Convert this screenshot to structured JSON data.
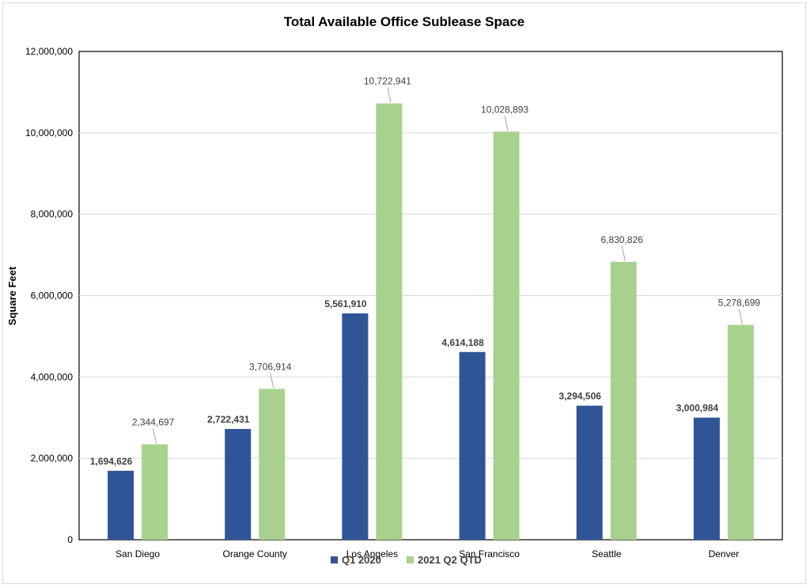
{
  "chart_data": {
    "type": "bar",
    "title": "Total Available Office  Sublease Space",
    "xlabel": "",
    "ylabel": "Square Feet",
    "ylim": [
      0,
      12000000
    ],
    "yticks": [
      0,
      2000000,
      4000000,
      6000000,
      8000000,
      10000000,
      12000000
    ],
    "ytick_labels": [
      "0",
      "2,000,000",
      "4,000,000",
      "6,000,000",
      "8,000,000",
      "10,000,000",
      "12,000,000"
    ],
    "categories": [
      "San Diego",
      "Orange County",
      "Los Angeles",
      "San Francisco",
      "Seattle",
      "Denver"
    ],
    "series": [
      {
        "name": "Q1 2020",
        "color": "#2f5597",
        "values": [
          1694626,
          2722431,
          5561910,
          4614188,
          3294506,
          3000984
        ],
        "labels": [
          "1,694,626",
          "2,722,431",
          "5,561,910",
          "4,614,188",
          "3,294,506",
          "3,000,984"
        ]
      },
      {
        "name": "2021 Q2 QTD",
        "color": "#a9d18e",
        "values": [
          2344697,
          3706914,
          10722941,
          10028893,
          6830826,
          5278699
        ],
        "labels": [
          "2,344,697",
          "3,706,914",
          "10,722,941",
          "10,028,893",
          "6,830,826",
          "5,278,699"
        ]
      }
    ],
    "grid": true,
    "legend_position": "bottom"
  }
}
